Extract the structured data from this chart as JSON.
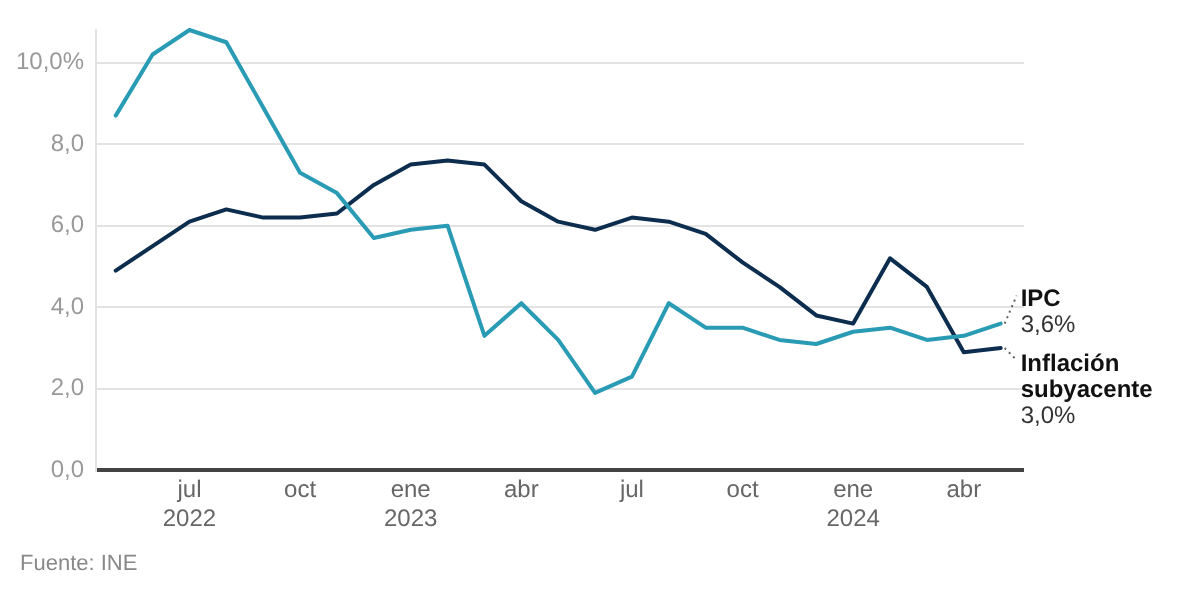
{
  "chart_data": {
    "type": "line",
    "x": [
      "2022-05",
      "2022-06",
      "2022-07",
      "2022-08",
      "2022-09",
      "2022-10",
      "2022-11",
      "2022-12",
      "2023-01",
      "2023-02",
      "2023-03",
      "2023-04",
      "2023-05",
      "2023-06",
      "2023-07",
      "2023-08",
      "2023-09",
      "2023-10",
      "2023-11",
      "2023-12",
      "2024-01",
      "2024-02",
      "2024-03",
      "2024-04",
      "2024-05"
    ],
    "series": [
      {
        "name": "IPC",
        "color": "#2a9bb5",
        "values": [
          8.7,
          10.2,
          10.8,
          10.5,
          8.9,
          7.3,
          6.8,
          5.7,
          5.9,
          6.0,
          3.3,
          4.1,
          3.2,
          1.9,
          2.3,
          4.1,
          3.5,
          3.5,
          3.2,
          3.1,
          3.4,
          3.5,
          3.2,
          3.3,
          3.6
        ],
        "value_labels": [
          null,
          null,
          null,
          null,
          null,
          null,
          null,
          null,
          null,
          null,
          null,
          null,
          null,
          null,
          null,
          null,
          null,
          null,
          null,
          null,
          null,
          null,
          null,
          null,
          "3,6%"
        ]
      },
      {
        "name": "Inflación subyacente",
        "color": "#0d2d4f",
        "values": [
          4.9,
          5.5,
          6.1,
          6.4,
          6.2,
          6.2,
          6.3,
          7.0,
          7.5,
          7.6,
          7.5,
          6.6,
          6.1,
          5.9,
          6.2,
          6.1,
          5.8,
          5.1,
          4.5,
          3.8,
          3.6,
          5.2,
          4.5,
          2.9,
          3.0
        ],
        "value_labels": [
          null,
          null,
          null,
          null,
          null,
          null,
          null,
          null,
          null,
          null,
          null,
          null,
          null,
          null,
          null,
          null,
          null,
          null,
          null,
          null,
          null,
          null,
          null,
          null,
          "3,0%"
        ]
      }
    ],
    "xlim": [
      "2022-04-15",
      "2024-05-20"
    ],
    "xticks": [
      {
        "value": "2022-07",
        "label": "jul 2022"
      },
      {
        "value": "2022-10",
        "label": "oct"
      },
      {
        "value": "2023-01",
        "label": "ene 2023"
      },
      {
        "value": "2023-04",
        "label": "abr"
      },
      {
        "value": "2023-07",
        "label": "jul"
      },
      {
        "value": "2023-10",
        "label": "oct"
      },
      {
        "value": "2024-01",
        "label": "ene 2024"
      },
      {
        "value": "2024-04",
        "label": "abr"
      }
    ],
    "ylim": [
      0,
      10.8
    ],
    "yticks": [
      {
        "value": 0,
        "label": "0,0"
      },
      {
        "value": 2,
        "label": "2,0"
      },
      {
        "value": 4,
        "label": "4,0"
      },
      {
        "value": 6,
        "label": "6,0"
      },
      {
        "value": 8,
        "label": "8,0"
      },
      {
        "value": 10,
        "label": "10,0%"
      }
    ],
    "grid": "y",
    "legend": false,
    "marker": "none",
    "line_style": "solid",
    "annotations": [
      "Fuente: INE"
    ]
  }
}
